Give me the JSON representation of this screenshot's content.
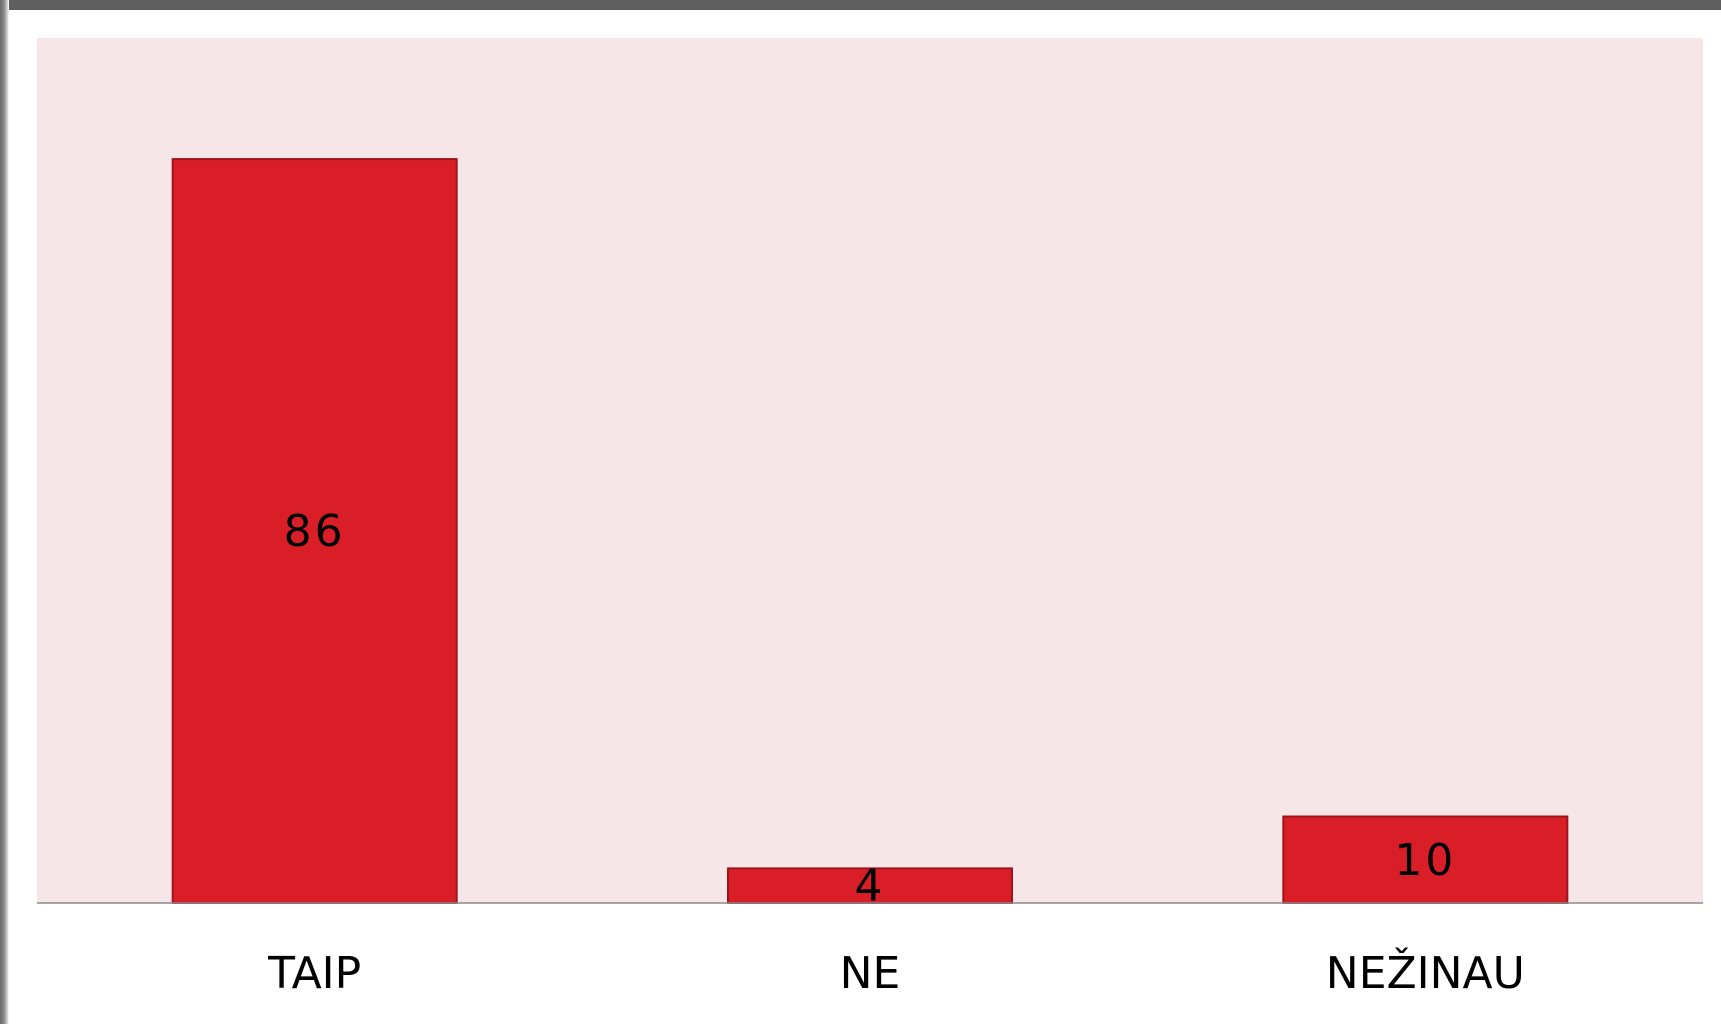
{
  "chart_data": {
    "type": "bar",
    "categories": [
      "TAIP",
      "NE",
      "NEŽINAU"
    ],
    "values": [
      86,
      4,
      10
    ],
    "data_labels": [
      "86",
      "4",
      "10"
    ],
    "title": "",
    "xlabel": "",
    "ylabel": "",
    "ylim": [
      0,
      100
    ],
    "grid": false,
    "legend": "none",
    "y_axis_visible": false,
    "colors": {
      "bar_fill": "#d91e28",
      "bar_stroke": "#a0131c",
      "plot_background": "#f6e6e8",
      "baseline": "#8c8c8c",
      "label_text": "#000000"
    }
  }
}
